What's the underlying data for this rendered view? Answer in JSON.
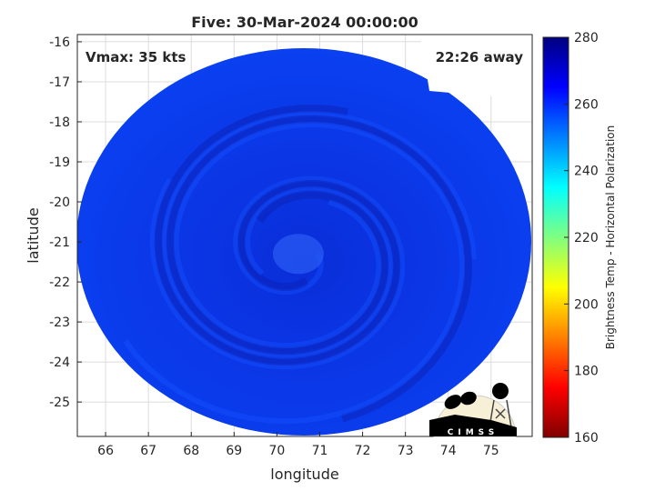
{
  "chart_data": {
    "type": "heatmap",
    "title": "Five: 30-Mar-2024 00:00:00",
    "xlabel": "longitude",
    "ylabel": "latitude",
    "xlim": [
      65.34,
      75.96
    ],
    "ylim": [
      -25.86,
      -15.82
    ],
    "xticks": [
      66,
      67,
      68,
      69,
      70,
      71,
      72,
      73,
      74,
      75
    ],
    "yticks": [
      -16,
      -17,
      -18,
      -19,
      -20,
      -21,
      -22,
      -23,
      -24,
      -25
    ],
    "grid": true,
    "colorbar": {
      "label": "Brightness Temp - Horizontal Polarization",
      "range": [
        160,
        280
      ],
      "ticks": [
        160,
        180,
        200,
        220,
        240,
        260,
        280
      ],
      "colormap": "jet"
    },
    "annotations": {
      "vmax": "Vmax: 35 kts",
      "away": "22:26 away"
    },
    "swath": {
      "center_lon": 70.3,
      "center_lat": -20.9,
      "typical_value": 262,
      "eye_center_lon": 70.5,
      "eye_center_lat": -21.3,
      "eye_value": 250
    },
    "logo_text": "CIMSS"
  }
}
